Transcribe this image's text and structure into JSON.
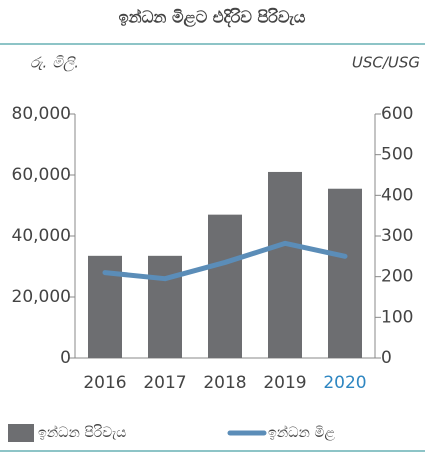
{
  "chart_data": {
    "type": "bar",
    "title": "ඉන්ධන මිළට එදිරිව පිරිවැය",
    "y_label": "රු. මිලි.",
    "y2_label": "USC/USG",
    "categories": [
      "2016",
      "2017",
      "2018",
      "2019",
      "2020"
    ],
    "category_label_colors": [
      "#444444",
      "#444444",
      "#444444",
      "#444444",
      "#2e86c1"
    ],
    "series": [
      {
        "name": "ඉන්ධන පිරිවැය",
        "type": "bar",
        "color": "#6d6e71",
        "values": [
          33500,
          33500,
          47000,
          61000,
          55500
        ]
      },
      {
        "name": "ඉන්ධන මිළ",
        "type": "line",
        "color": "#5b8db8",
        "axis": "y2",
        "values": [
          210,
          195,
          235,
          282,
          250
        ]
      }
    ],
    "ylim": [
      0,
      80000
    ],
    "yticks": [
      {
        "value": 0,
        "label": "0"
      },
      {
        "value": 20000,
        "label": "20,000"
      },
      {
        "value": 40000,
        "label": "40,000"
      },
      {
        "value": 60000,
        "label": "60,000"
      },
      {
        "value": 80000,
        "label": "80,000"
      }
    ],
    "y2lim": [
      0,
      600
    ],
    "y2ticks": [
      0,
      100,
      200,
      300,
      400,
      500,
      600
    ],
    "title_color": "#1b8a8f"
  }
}
